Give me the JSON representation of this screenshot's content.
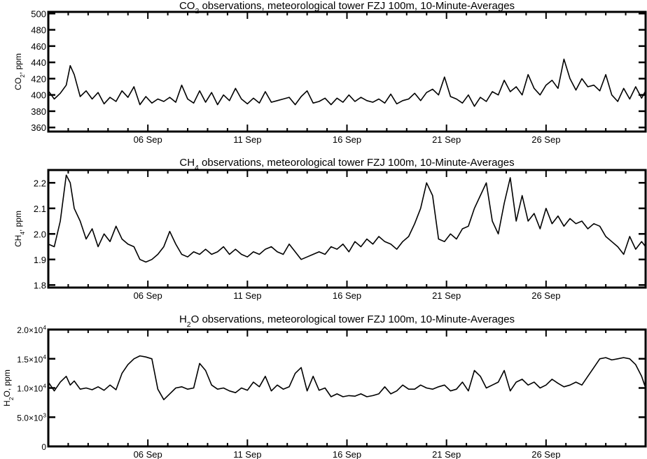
{
  "chart_data": [
    {
      "type": "line",
      "title": "CO₂ observations, meteorological tower FZJ 100m, 10-Minute-Averages",
      "title_parts": {
        "pre": "CO",
        "sub": "2",
        "post": " observations, meteorological tower FZJ 100m, 10-Minute-Averages"
      },
      "ylabel": "CO₂, ppm",
      "ylabel_parts": {
        "pre": "CO",
        "sub": "2",
        "post": ", ppm"
      },
      "xlim": [
        1,
        31
      ],
      "ylim": [
        355,
        502
      ],
      "yticks": [
        360,
        380,
        400,
        420,
        440,
        460,
        480,
        500
      ],
      "ytick_labels": [
        "360",
        "380",
        "400",
        "420",
        "440",
        "460",
        "480",
        "500"
      ],
      "xticks": [
        6,
        11,
        16,
        21,
        26
      ],
      "xtick_labels": [
        "06 Sep",
        "11 Sep",
        "16 Sep",
        "21 Sep",
        "26 Sep"
      ],
      "grid": false,
      "series": [
        {
          "color": "#000000",
          "x": [
            1.0,
            1.3,
            1.6,
            1.9,
            2.1,
            2.3,
            2.6,
            2.9,
            3.2,
            3.5,
            3.8,
            4.1,
            4.4,
            4.7,
            5.0,
            5.3,
            5.6,
            5.9,
            6.2,
            6.5,
            6.8,
            7.1,
            7.4,
            7.7,
            8.0,
            8.3,
            8.6,
            8.9,
            9.2,
            9.5,
            9.8,
            10.1,
            10.4,
            10.7,
            11.0,
            11.3,
            11.6,
            11.9,
            12.2,
            12.5,
            12.8,
            13.1,
            13.4,
            13.7,
            14.0,
            14.3,
            14.6,
            14.9,
            15.2,
            15.5,
            15.8,
            16.1,
            16.4,
            16.7,
            17.0,
            17.3,
            17.6,
            17.9,
            18.2,
            18.5,
            18.8,
            19.1,
            19.4,
            19.7,
            20.0,
            20.3,
            20.6,
            20.9,
            21.2,
            21.5,
            21.8,
            22.1,
            22.4,
            22.7,
            23.0,
            23.3,
            23.6,
            23.9,
            24.2,
            24.5,
            24.8,
            25.1,
            25.4,
            25.7,
            26.0,
            26.3,
            26.6,
            26.9,
            27.2,
            27.5,
            27.8,
            28.1,
            28.4,
            28.7,
            29.0,
            29.3,
            29.6,
            29.9,
            30.2,
            30.5,
            30.8,
            31.0
          ],
          "y": [
            405,
            395,
            402,
            412,
            436,
            425,
            398,
            405,
            395,
            403,
            389,
            397,
            392,
            405,
            397,
            410,
            388,
            398,
            390,
            395,
            392,
            397,
            391,
            412,
            395,
            390,
            405,
            391,
            403,
            388,
            400,
            393,
            408,
            395,
            389,
            396,
            390,
            404,
            391,
            393,
            395,
            397,
            388,
            398,
            405,
            390,
            392,
            396,
            388,
            396,
            391,
            400,
            392,
            397,
            393,
            391,
            395,
            390,
            401,
            389,
            393,
            395,
            402,
            393,
            403,
            407,
            400,
            422,
            398,
            395,
            390,
            400,
            386,
            397,
            392,
            404,
            400,
            418,
            404,
            410,
            400,
            425,
            408,
            400,
            412,
            418,
            408,
            444,
            420,
            406,
            420,
            410,
            412,
            405,
            425,
            400,
            392,
            408,
            395,
            410,
            396,
            405
          ]
        }
      ]
    },
    {
      "type": "line",
      "title": "CH₄ observations, meteorological tower FZJ 100m, 10-Minute-Averages",
      "title_parts": {
        "pre": "CH",
        "sub": "4",
        "post": " observations, meteorological tower FZJ 100m, 10-Minute-Averages"
      },
      "ylabel": "CH₄, ppm",
      "ylabel_parts": {
        "pre": "CH",
        "sub": "4",
        "post": ", ppm"
      },
      "xlim": [
        1,
        31
      ],
      "ylim": [
        1.79,
        2.25
      ],
      "yticks": [
        1.8,
        1.9,
        2.0,
        2.1,
        2.2
      ],
      "ytick_labels": [
        "1.8",
        "1.9",
        "2.0",
        "2.1",
        "2.2"
      ],
      "xticks": [
        6,
        11,
        16,
        21,
        26
      ],
      "xtick_labels": [
        "06 Sep",
        "11 Sep",
        "16 Sep",
        "21 Sep",
        "26 Sep"
      ],
      "grid": false,
      "series": [
        {
          "color": "#000000",
          "x": [
            1.0,
            1.3,
            1.6,
            1.9,
            2.1,
            2.3,
            2.6,
            2.9,
            3.2,
            3.5,
            3.8,
            4.1,
            4.4,
            4.7,
            5.0,
            5.3,
            5.6,
            5.9,
            6.2,
            6.5,
            6.8,
            7.1,
            7.4,
            7.7,
            8.0,
            8.3,
            8.6,
            8.9,
            9.2,
            9.5,
            9.8,
            10.1,
            10.4,
            10.7,
            11.0,
            11.3,
            11.6,
            11.9,
            12.2,
            12.5,
            12.8,
            13.1,
            13.4,
            13.7,
            14.0,
            14.3,
            14.6,
            14.9,
            15.2,
            15.5,
            15.8,
            16.1,
            16.4,
            16.7,
            17.0,
            17.3,
            17.6,
            17.9,
            18.2,
            18.5,
            18.8,
            19.1,
            19.4,
            19.7,
            20.0,
            20.3,
            20.6,
            20.9,
            21.2,
            21.5,
            21.8,
            22.1,
            22.4,
            22.7,
            23.0,
            23.3,
            23.6,
            23.9,
            24.2,
            24.5,
            24.8,
            25.1,
            25.4,
            25.7,
            26.0,
            26.3,
            26.6,
            26.9,
            27.2,
            27.5,
            27.8,
            28.1,
            28.4,
            28.7,
            29.0,
            29.3,
            29.6,
            29.9,
            30.2,
            30.5,
            30.8,
            31.0
          ],
          "y": [
            1.96,
            1.95,
            2.05,
            2.23,
            2.2,
            2.1,
            2.05,
            1.98,
            2.02,
            1.95,
            2.0,
            1.97,
            2.03,
            1.98,
            1.96,
            1.95,
            1.9,
            1.89,
            1.9,
            1.92,
            1.95,
            2.01,
            1.96,
            1.92,
            1.91,
            1.93,
            1.92,
            1.94,
            1.92,
            1.93,
            1.95,
            1.92,
            1.94,
            1.92,
            1.91,
            1.93,
            1.92,
            1.94,
            1.95,
            1.93,
            1.92,
            1.96,
            1.93,
            1.9,
            1.91,
            1.92,
            1.93,
            1.92,
            1.95,
            1.94,
            1.96,
            1.93,
            1.97,
            1.95,
            1.98,
            1.96,
            1.99,
            1.97,
            1.96,
            1.94,
            1.97,
            1.99,
            2.04,
            2.1,
            2.2,
            2.15,
            1.98,
            1.97,
            2.0,
            1.98,
            2.02,
            2.03,
            2.1,
            2.15,
            2.2,
            2.05,
            2.0,
            2.12,
            2.22,
            2.05,
            2.15,
            2.05,
            2.08,
            2.02,
            2.1,
            2.04,
            2.07,
            2.03,
            2.06,
            2.04,
            2.05,
            2.02,
            2.04,
            2.03,
            1.99,
            1.97,
            1.95,
            1.92,
            1.99,
            1.94,
            1.97,
            1.95
          ]
        }
      ]
    },
    {
      "type": "line",
      "title": "H₂O observations, meteorological tower FZJ 100m, 10-Minute-Averages",
      "title_parts": {
        "pre": "H",
        "sub": "2",
        "post": "O observations, meteorological tower FZJ 100m, 10-Minute-Averages"
      },
      "ylabel": "H₂O, ppm",
      "ylabel_parts": {
        "pre": "H",
        "sub": "2",
        "post": "O, ppm"
      },
      "xlim": [
        1,
        31
      ],
      "ylim": [
        0,
        20000
      ],
      "yticks": [
        0,
        5000,
        10000,
        15000,
        20000
      ],
      "ytick_labels": [
        {
          "mant": "0",
          "exp": ""
        },
        {
          "mant": "5.0×10",
          "exp": "3"
        },
        {
          "mant": "1.0×10",
          "exp": "4"
        },
        {
          "mant": "1.5×10",
          "exp": "4"
        },
        {
          "mant": "2.0×10",
          "exp": "4"
        }
      ],
      "xticks": [
        6,
        11,
        16,
        21,
        26
      ],
      "xtick_labels": [
        "06 Sep",
        "11 Sep",
        "16 Sep",
        "21 Sep",
        "26 Sep"
      ],
      "grid": false,
      "series": [
        {
          "color": "#000000",
          "x": [
            1.0,
            1.3,
            1.6,
            1.9,
            2.1,
            2.3,
            2.6,
            2.9,
            3.2,
            3.5,
            3.8,
            4.1,
            4.4,
            4.7,
            5.0,
            5.3,
            5.6,
            5.9,
            6.2,
            6.5,
            6.8,
            7.1,
            7.4,
            7.7,
            8.0,
            8.3,
            8.6,
            8.9,
            9.2,
            9.5,
            9.8,
            10.1,
            10.4,
            10.7,
            11.0,
            11.3,
            11.6,
            11.9,
            12.2,
            12.5,
            12.8,
            13.1,
            13.4,
            13.7,
            14.0,
            14.3,
            14.6,
            14.9,
            15.2,
            15.5,
            15.8,
            16.1,
            16.4,
            16.7,
            17.0,
            17.3,
            17.6,
            17.9,
            18.2,
            18.5,
            18.8,
            19.1,
            19.4,
            19.7,
            20.0,
            20.3,
            20.6,
            20.9,
            21.2,
            21.5,
            21.8,
            22.1,
            22.4,
            22.7,
            23.0,
            23.3,
            23.6,
            23.9,
            24.2,
            24.5,
            24.8,
            25.1,
            25.4,
            25.7,
            26.0,
            26.3,
            26.6,
            26.9,
            27.2,
            27.5,
            27.8,
            28.1,
            28.4,
            28.7,
            29.0,
            29.3,
            29.6,
            29.9,
            30.2,
            30.5,
            30.8,
            31.0
          ],
          "y": [
            11000,
            9500,
            11000,
            12000,
            10500,
            11200,
            9800,
            10000,
            9700,
            10200,
            9600,
            10500,
            9700,
            12500,
            14000,
            15000,
            15500,
            15300,
            15000,
            9800,
            8000,
            9000,
            10000,
            10200,
            9800,
            10000,
            14200,
            13000,
            10500,
            9800,
            10000,
            9500,
            9200,
            10000,
            9600,
            11000,
            10200,
            12000,
            9500,
            10500,
            9800,
            10200,
            12500,
            13500,
            9500,
            12000,
            9600,
            10000,
            8500,
            9000,
            8500,
            8700,
            8600,
            9000,
            8500,
            8700,
            9000,
            10200,
            9000,
            9500,
            10500,
            9800,
            9800,
            10500,
            10000,
            9800,
            10200,
            10500,
            9500,
            9800,
            11000,
            9500,
            13000,
            12000,
            10000,
            10500,
            11000,
            13000,
            9500,
            11000,
            11500,
            10500,
            11000,
            10000,
            10500,
            11500,
            10800,
            10200,
            10500,
            11000,
            10500,
            12000,
            13500,
            15000,
            15200,
            14800,
            15000,
            15200,
            15000,
            14000,
            12000,
            10000
          ]
        }
      ]
    }
  ]
}
